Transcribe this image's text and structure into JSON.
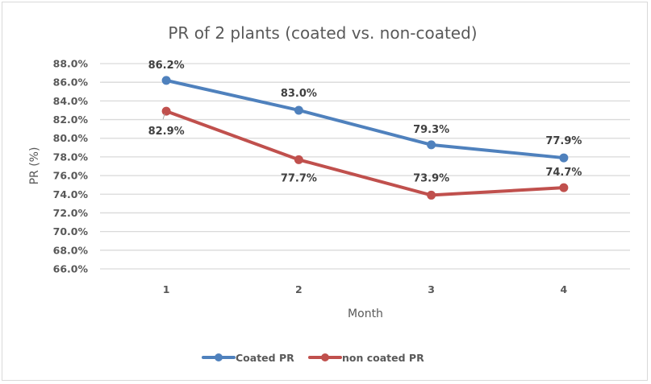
{
  "chart_data": {
    "type": "line",
    "title": "PR of 2 plants (coated vs. non-coated)",
    "xlabel": "Month",
    "ylabel": "PR (%)",
    "categories": [
      "1",
      "2",
      "3",
      "4"
    ],
    "ylim": [
      66.0,
      88.0
    ],
    "yticks": [
      "88.0%",
      "86.0%",
      "84.0%",
      "82.0%",
      "80.0%",
      "78.0%",
      "76.0%",
      "74.0%",
      "72.0%",
      "70.0%",
      "68.0%",
      "66.0%"
    ],
    "grid": true,
    "legend_position": "bottom",
    "series": [
      {
        "name": "Coated PR",
        "color": "#4f81bd",
        "values": [
          86.2,
          83.0,
          79.3,
          77.9
        ],
        "labels": [
          "86.2%",
          "83.0%",
          "79.3%",
          "77.9%"
        ]
      },
      {
        "name": "non coated PR",
        "color": "#c0504d",
        "values": [
          82.9,
          77.7,
          73.9,
          74.7
        ],
        "labels": [
          "82.9%",
          "77.7%",
          "73.9%",
          "74.7%"
        ]
      }
    ]
  }
}
